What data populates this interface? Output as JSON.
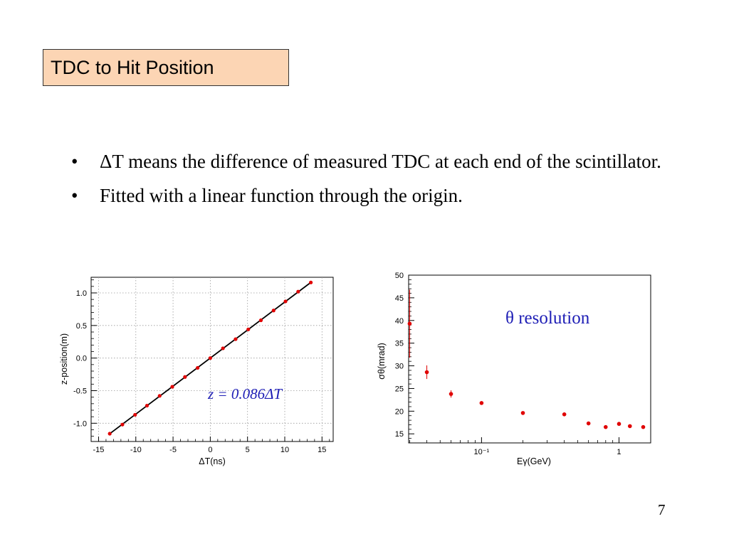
{
  "slide": {
    "title": "TDC to Hit Position",
    "bullets": [
      "ΔT means the difference of measured TDC at each end of the scintillator.",
      "Fitted with a linear function through the origin."
    ],
    "page_number": "7"
  },
  "chart_data": [
    {
      "type": "scatter",
      "xlabel": "ΔT(ns)",
      "ylabel": "z-position(m)",
      "xlim": [
        -16,
        16.5
      ],
      "ylim": [
        -1.28,
        1.24
      ],
      "x_ticks": [
        "-15",
        "-10",
        "-5",
        "0",
        "5",
        "10",
        "15"
      ],
      "y_ticks": [
        "-1.0",
        "-0.5",
        "0.0",
        "0.5",
        "1.0"
      ],
      "grid": true,
      "annotation": "z = 0.086ΔT",
      "fit": {
        "slope": 0.086,
        "intercept": 0,
        "color": "#000000"
      },
      "series": [
        {
          "marker_color": "#e00000",
          "x": [
            -13.5,
            -11.8,
            -10.1,
            -8.5,
            -6.8,
            -5.1,
            -3.4,
            -1.7,
            0.0,
            1.7,
            3.4,
            5.1,
            6.8,
            8.5,
            10.1,
            11.8,
            13.5
          ],
          "y": [
            -1.16,
            -1.02,
            -0.87,
            -0.73,
            -0.58,
            -0.44,
            -0.29,
            -0.15,
            0.0,
            0.15,
            0.29,
            0.44,
            0.58,
            0.73,
            0.87,
            1.02,
            1.16
          ]
        }
      ]
    },
    {
      "type": "scatter",
      "xlabel": "Eγ(GeV)",
      "ylabel": "σθ(mrad)",
      "log_x": true,
      "xlim": [
        0.0295,
        1.7
      ],
      "ylim": [
        13,
        50
      ],
      "x_ticks": [
        "10⁻¹",
        "1"
      ],
      "y_ticks": [
        "15",
        "20",
        "25",
        "30",
        "35",
        "40",
        "45",
        "50"
      ],
      "grid": false,
      "annotation": "θ resolution",
      "series": [
        {
          "marker_color": "#e00000",
          "x": [
            0.03,
            0.04,
            0.06,
            0.1,
            0.2,
            0.4,
            0.6,
            0.8,
            1.0,
            1.2,
            1.5
          ],
          "y": [
            39.3,
            28.6,
            23.8,
            21.8,
            19.6,
            19.3,
            17.3,
            16.5,
            17.2,
            16.7,
            16.5
          ],
          "err": [
            7.5,
            1.5,
            0.8,
            0.4,
            0.3,
            0.4,
            0.4,
            0.3,
            0.4,
            0.3,
            0.3
          ]
        }
      ]
    }
  ]
}
